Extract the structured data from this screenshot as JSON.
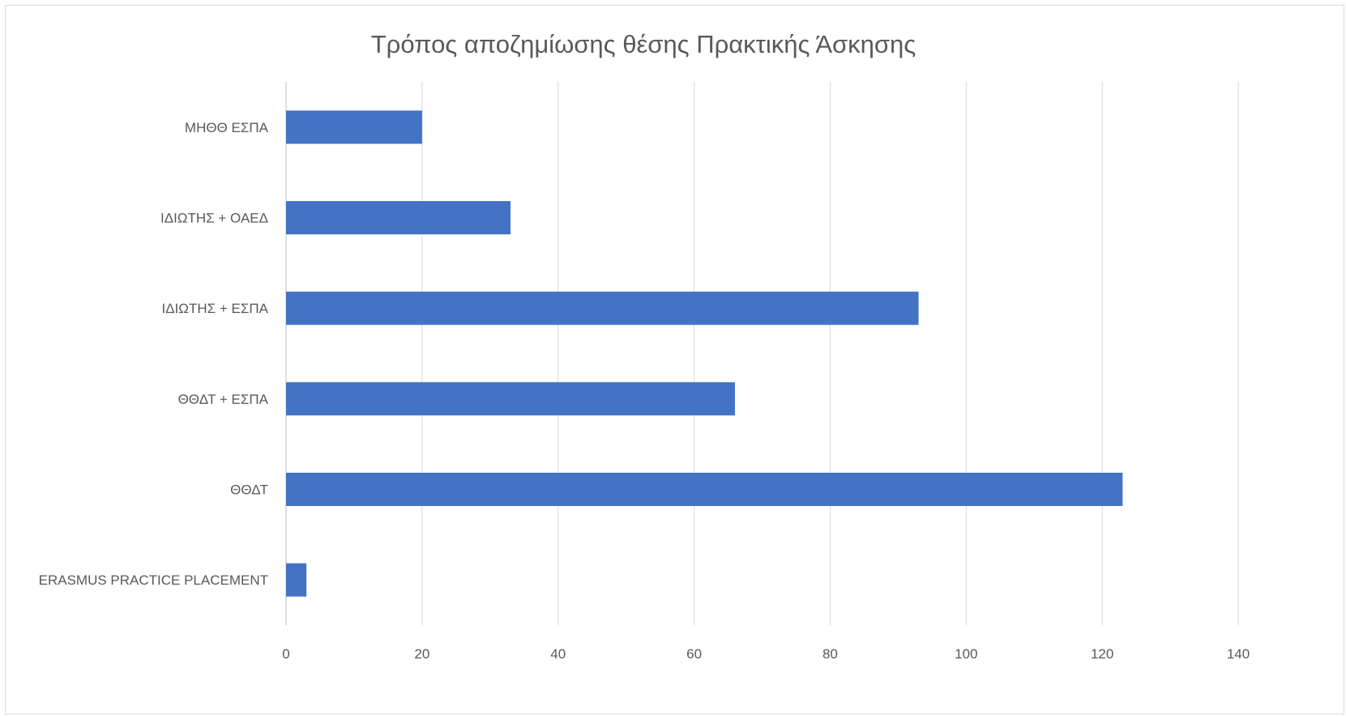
{
  "chart_data": {
    "type": "bar",
    "orientation": "horizontal",
    "title": "Τρόπος αποζημίωσης θέσης Πρακτικής Άσκησης",
    "xlabel": "",
    "ylabel": "",
    "categories": [
      "ΜΗΘΘ ΕΣΠΑ",
      "ΙΔΙΩΤΗΣ + ΟΑΕΔ",
      "ΙΔΙΩΤΗΣ + ΕΣΠΑ",
      "ΘΘΔΤ + ΕΣΠΑ",
      "ΘΘΔΤ",
      "ERASMUS PRACTICE PLACEMENT"
    ],
    "values": [
      20,
      33,
      93,
      66,
      123,
      3
    ],
    "xlim": [
      0,
      140
    ],
    "x_ticks": [
      "0",
      "20",
      "40",
      "60",
      "80",
      "100",
      "120",
      "140"
    ],
    "grid": true,
    "legend": "none",
    "colors": {
      "bar": "#4472c4"
    }
  }
}
